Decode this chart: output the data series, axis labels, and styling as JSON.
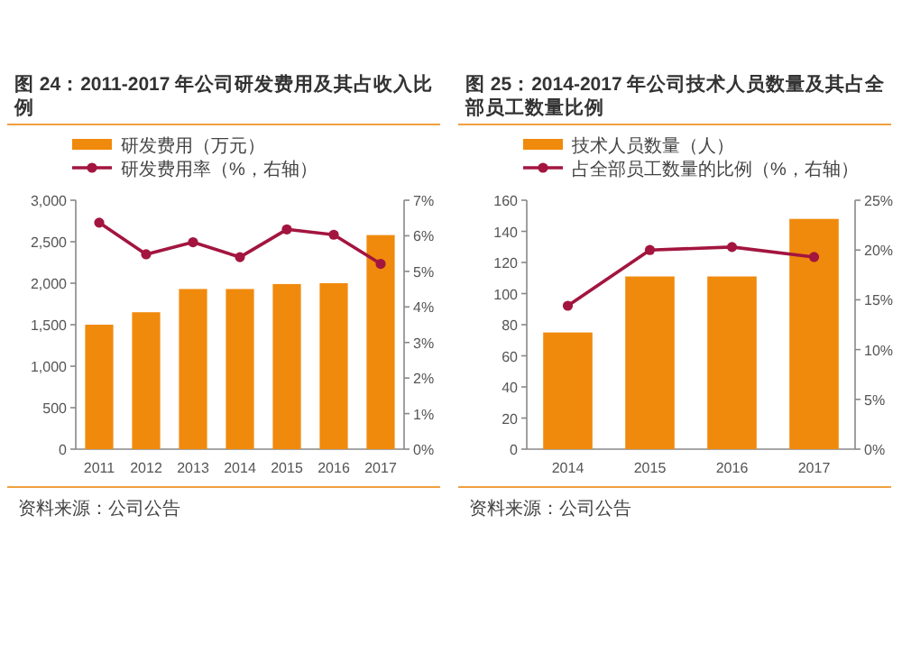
{
  "chart_data": [
    {
      "type": "bar",
      "title": "图 24：2011-2017 年公司研发费用及其占收入比例",
      "legend": "top",
      "marker": "circle",
      "categories": [
        "2011",
        "2012",
        "2013",
        "2014",
        "2015",
        "2016",
        "2017"
      ],
      "series": [
        {
          "name": "研发费用（万元）",
          "color": "#f08a0c",
          "values": [
            1500,
            1650,
            1930,
            1930,
            1990,
            2000,
            2580
          ]
        },
        {
          "name": "研发费用率（%，右轴）",
          "type": "line",
          "axis": "y2",
          "color": "#a3153f",
          "values": [
            6.37,
            5.48,
            5.82,
            5.4,
            6.18,
            6.03,
            5.21
          ]
        }
      ],
      "ylim": [
        0,
        3000
      ],
      "yticks": [
        {
          "value": 0,
          "label": "0"
        },
        {
          "value": 500,
          "label": "500"
        },
        {
          "value": 1000,
          "label": "1,000"
        },
        {
          "value": 1500,
          "label": "1,500"
        },
        {
          "value": 2000,
          "label": "2,000"
        },
        {
          "value": 2500,
          "label": "2,500"
        },
        {
          "value": 3000,
          "label": "3,000"
        }
      ],
      "y2lim": [
        0,
        7
      ],
      "y2ticks": [
        {
          "value": 0,
          "label": "0%"
        },
        {
          "value": 1,
          "label": "1%"
        },
        {
          "value": 2,
          "label": "2%"
        },
        {
          "value": 3,
          "label": "3%"
        },
        {
          "value": 4,
          "label": "4%"
        },
        {
          "value": 5,
          "label": "5%"
        },
        {
          "value": 6,
          "label": "6%"
        },
        {
          "value": 7,
          "label": "7%"
        }
      ],
      "annotations": [
        "资料来源：公司公告"
      ]
    },
    {
      "type": "bar",
      "title": "图 25：2014-2017 年公司技术人员数量及其占全部员工数量比例",
      "legend": "top",
      "marker": "circle",
      "categories": [
        "2014",
        "2015",
        "2016",
        "2017"
      ],
      "series": [
        {
          "name": "技术人员数量（人）",
          "color": "#f08a0c",
          "values": [
            75,
            111,
            111,
            148
          ]
        },
        {
          "name": "占全部员工数量的比例（%，右轴）",
          "type": "line",
          "axis": "y2",
          "color": "#a3153f",
          "values": [
            14.4,
            20.0,
            20.3,
            19.3
          ]
        }
      ],
      "ylim": [
        0,
        160
      ],
      "yticks": [
        0,
        20,
        40,
        60,
        80,
        100,
        120,
        140,
        160
      ],
      "y2lim": [
        0,
        25
      ],
      "y2ticks": [
        {
          "value": 0,
          "label": "0%"
        },
        {
          "value": 5,
          "label": "5%"
        },
        {
          "value": 10,
          "label": "10%"
        },
        {
          "value": 15,
          "label": "15%"
        },
        {
          "value": 20,
          "label": "20%"
        },
        {
          "value": 25,
          "label": "25%"
        }
      ],
      "annotations": [
        "资料来源：公司公告"
      ]
    }
  ]
}
